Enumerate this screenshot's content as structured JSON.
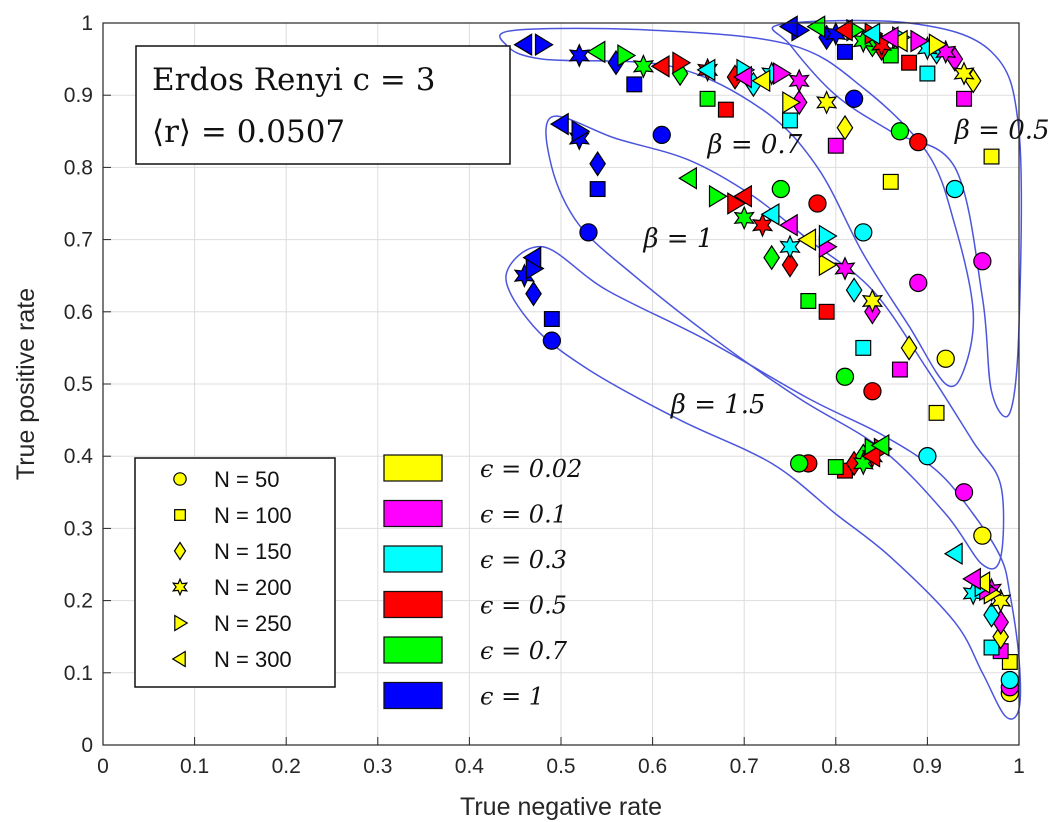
{
  "chart_data": {
    "type": "scatter",
    "xlabel": "True negative rate",
    "ylabel": "True positive rate",
    "xlim": [
      0,
      1
    ],
    "ylim": [
      0,
      1
    ],
    "xticks": [
      "0",
      "0.1",
      "0.2",
      "0.3",
      "0.4",
      "0.5",
      "0.6",
      "0.7",
      "0.8",
      "0.9",
      "1"
    ],
    "yticks": [
      "0",
      "0.1",
      "0.2",
      "0.3",
      "0.4",
      "0.5",
      "0.6",
      "0.7",
      "0.8",
      "0.9",
      "1"
    ],
    "grid": true,
    "title_box": {
      "line1": "Erdos Renyi c = 3",
      "line2": "⟨r⟩ = 0.0507"
    },
    "marker_legend": [
      {
        "label": "N = 50",
        "marker": "circle"
      },
      {
        "label": "N = 100",
        "marker": "square"
      },
      {
        "label": "N = 150",
        "marker": "diamond"
      },
      {
        "label": "N = 200",
        "marker": "hexagram"
      },
      {
        "label": "N = 250",
        "marker": "triangle-right"
      },
      {
        "label": "N = 300",
        "marker": "triangle-left"
      }
    ],
    "color_legend": [
      {
        "label": "ϵ = 0.02",
        "color": "#ffff00"
      },
      {
        "label": "ϵ = 0.1",
        "color": "#ff00ff"
      },
      {
        "label": "ϵ = 0.3",
        "color": "#00ffff"
      },
      {
        "label": "ϵ = 0.5",
        "color": "#ff0000"
      },
      {
        "label": "ϵ = 0.7",
        "color": "#00ff00"
      },
      {
        "label": "ϵ = 1",
        "color": "#0000ff"
      }
    ],
    "region_labels": [
      {
        "text": "β = 0.5",
        "x": 0.93,
        "y": 0.84
      },
      {
        "text": "β = 0.7",
        "x": 0.66,
        "y": 0.82
      },
      {
        "text": "β = 1",
        "x": 0.59,
        "y": 0.69
      },
      {
        "text": "β = 1.5",
        "x": 0.62,
        "y": 0.46
      }
    ],
    "regions": [
      {
        "name": "beta-0.5",
        "points": [
          [
            0.74,
            0.998
          ],
          [
            0.88,
            1.0
          ],
          [
            0.97,
            0.96
          ],
          [
            1.0,
            0.85
          ],
          [
            1.0,
            0.58
          ],
          [
            0.99,
            0.46
          ],
          [
            0.97,
            0.49
          ],
          [
            0.96,
            0.62
          ],
          [
            0.93,
            0.8
          ],
          [
            0.86,
            0.85
          ],
          [
            0.8,
            0.9
          ],
          [
            0.75,
            0.97
          ]
        ]
      },
      {
        "name": "beta-0.7",
        "points": [
          [
            0.45,
            0.99
          ],
          [
            0.6,
            0.99
          ],
          [
            0.75,
            0.97
          ],
          [
            0.83,
            0.91
          ],
          [
            0.9,
            0.82
          ],
          [
            0.93,
            0.72
          ],
          [
            0.95,
            0.6
          ],
          [
            0.94,
            0.52
          ],
          [
            0.92,
            0.5
          ],
          [
            0.88,
            0.58
          ],
          [
            0.83,
            0.68
          ],
          [
            0.78,
            0.8
          ],
          [
            0.72,
            0.88
          ],
          [
            0.62,
            0.94
          ],
          [
            0.48,
            0.95
          ],
          [
            0.44,
            0.97
          ]
        ]
      },
      {
        "name": "beta-1",
        "points": [
          [
            0.49,
            0.87
          ],
          [
            0.56,
            0.84
          ],
          [
            0.64,
            0.81
          ],
          [
            0.71,
            0.76
          ],
          [
            0.77,
            0.7
          ],
          [
            0.84,
            0.63
          ],
          [
            0.9,
            0.52
          ],
          [
            0.95,
            0.42
          ],
          [
            0.98,
            0.36
          ],
          [
            0.98,
            0.26
          ],
          [
            0.96,
            0.25
          ],
          [
            0.92,
            0.32
          ],
          [
            0.85,
            0.41
          ],
          [
            0.76,
            0.48
          ],
          [
            0.67,
            0.56
          ],
          [
            0.58,
            0.65
          ],
          [
            0.52,
            0.72
          ],
          [
            0.49,
            0.8
          ]
        ]
      },
      {
        "name": "beta-1.5",
        "points": [
          [
            0.44,
            0.65
          ],
          [
            0.48,
            0.69
          ],
          [
            0.55,
            0.63
          ],
          [
            0.66,
            0.56
          ],
          [
            0.77,
            0.48
          ],
          [
            0.85,
            0.43
          ],
          [
            0.91,
            0.38
          ],
          [
            0.95,
            0.32
          ],
          [
            0.98,
            0.26
          ],
          [
            0.99,
            0.21
          ],
          [
            1.0,
            0.12
          ],
          [
            1.0,
            0.05
          ],
          [
            0.985,
            0.04
          ],
          [
            0.96,
            0.1
          ],
          [
            0.93,
            0.17
          ],
          [
            0.86,
            0.26
          ],
          [
            0.8,
            0.32
          ],
          [
            0.73,
            0.39
          ],
          [
            0.63,
            0.45
          ],
          [
            0.53,
            0.52
          ],
          [
            0.47,
            0.58
          ]
        ]
      }
    ],
    "series": [
      {
        "n": "50",
        "eps": "0.02",
        "points": [
          [
            0.92,
            0.535
          ],
          [
            0.99,
            0.072
          ],
          [
            0.96,
            0.29
          ]
        ]
      },
      {
        "n": "50",
        "eps": "0.1",
        "points": [
          [
            0.96,
            0.67
          ],
          [
            0.89,
            0.64
          ],
          [
            0.94,
            0.35
          ],
          [
            0.99,
            0.08
          ]
        ]
      },
      {
        "n": "50",
        "eps": "0.3",
        "points": [
          [
            0.93,
            0.77
          ],
          [
            0.83,
            0.71
          ],
          [
            0.9,
            0.4
          ],
          [
            0.99,
            0.09
          ]
        ]
      },
      {
        "n": "50",
        "eps": "0.5",
        "points": [
          [
            0.89,
            0.835
          ],
          [
            0.78,
            0.75
          ],
          [
            0.84,
            0.49
          ],
          [
            0.77,
            0.39
          ]
        ]
      },
      {
        "n": "50",
        "eps": "0.7",
        "points": [
          [
            0.87,
            0.85
          ],
          [
            0.74,
            0.77
          ],
          [
            0.81,
            0.51
          ],
          [
            0.76,
            0.39
          ]
        ]
      },
      {
        "n": "50",
        "eps": "1",
        "points": [
          [
            0.82,
            0.895
          ],
          [
            0.61,
            0.845
          ],
          [
            0.53,
            0.71
          ],
          [
            0.49,
            0.56
          ]
        ]
      },
      {
        "n": "100",
        "eps": "0.02",
        "points": [
          [
            0.97,
            0.815
          ],
          [
            0.86,
            0.78
          ],
          [
            0.91,
            0.46
          ],
          [
            0.99,
            0.115
          ]
        ]
      },
      {
        "n": "100",
        "eps": "0.1",
        "points": [
          [
            0.94,
            0.895
          ],
          [
            0.8,
            0.83
          ],
          [
            0.87,
            0.52
          ],
          [
            0.98,
            0.13
          ]
        ]
      },
      {
        "n": "100",
        "eps": "0.3",
        "points": [
          [
            0.9,
            0.93
          ],
          [
            0.75,
            0.865
          ],
          [
            0.83,
            0.55
          ],
          [
            0.97,
            0.135
          ]
        ]
      },
      {
        "n": "100",
        "eps": "0.5",
        "points": [
          [
            0.88,
            0.945
          ],
          [
            0.68,
            0.88
          ],
          [
            0.79,
            0.6
          ],
          [
            0.81,
            0.38
          ]
        ]
      },
      {
        "n": "100",
        "eps": "0.7",
        "points": [
          [
            0.86,
            0.955
          ],
          [
            0.66,
            0.895
          ],
          [
            0.77,
            0.615
          ],
          [
            0.8,
            0.385
          ]
        ]
      },
      {
        "n": "100",
        "eps": "1",
        "points": [
          [
            0.81,
            0.96
          ],
          [
            0.58,
            0.915
          ],
          [
            0.54,
            0.77
          ],
          [
            0.49,
            0.59
          ]
        ]
      },
      {
        "n": "150",
        "eps": "0.02",
        "points": [
          [
            0.95,
            0.92
          ],
          [
            0.81,
            0.855
          ],
          [
            0.88,
            0.55
          ],
          [
            0.98,
            0.15
          ]
        ]
      },
      {
        "n": "150",
        "eps": "0.1",
        "points": [
          [
            0.93,
            0.95
          ],
          [
            0.76,
            0.89
          ],
          [
            0.84,
            0.6
          ],
          [
            0.98,
            0.17
          ]
        ]
      },
      {
        "n": "150",
        "eps": "0.3",
        "points": [
          [
            0.91,
            0.96
          ],
          [
            0.71,
            0.915
          ],
          [
            0.82,
            0.63
          ],
          [
            0.97,
            0.18
          ]
        ]
      },
      {
        "n": "150",
        "eps": "0.5",
        "points": [
          [
            0.85,
            0.965
          ],
          [
            0.69,
            0.925
          ],
          [
            0.75,
            0.665
          ],
          [
            0.82,
            0.39
          ]
        ]
      },
      {
        "n": "150",
        "eps": "0.7",
        "points": [
          [
            0.84,
            0.97
          ],
          [
            0.63,
            0.93
          ],
          [
            0.73,
            0.675
          ],
          [
            0.83,
            0.4
          ]
        ]
      },
      {
        "n": "150",
        "eps": "1",
        "points": [
          [
            0.79,
            0.98
          ],
          [
            0.56,
            0.945
          ],
          [
            0.54,
            0.805
          ],
          [
            0.47,
            0.625
          ]
        ]
      },
      {
        "n": "200",
        "eps": "0.02",
        "points": [
          [
            0.94,
            0.93
          ],
          [
            0.79,
            0.89
          ],
          [
            0.84,
            0.615
          ],
          [
            0.98,
            0.2
          ]
        ]
      },
      {
        "n": "200",
        "eps": "0.1",
        "points": [
          [
            0.92,
            0.96
          ],
          [
            0.76,
            0.92
          ],
          [
            0.81,
            0.66
          ],
          [
            0.97,
            0.215
          ]
        ]
      },
      {
        "n": "200",
        "eps": "0.3",
        "points": [
          [
            0.9,
            0.965
          ],
          [
            0.73,
            0.93
          ],
          [
            0.75,
            0.69
          ],
          [
            0.95,
            0.21
          ]
        ]
      },
      {
        "n": "200",
        "eps": "0.5",
        "points": [
          [
            0.85,
            0.97
          ],
          [
            0.66,
            0.935
          ],
          [
            0.72,
            0.72
          ],
          [
            0.84,
            0.4
          ]
        ]
      },
      {
        "n": "200",
        "eps": "0.7",
        "points": [
          [
            0.83,
            0.975
          ],
          [
            0.59,
            0.94
          ],
          [
            0.7,
            0.73
          ],
          [
            0.83,
            0.39
          ]
        ]
      },
      {
        "n": "200",
        "eps": "1",
        "points": [
          [
            0.8,
            0.985
          ],
          [
            0.52,
            0.955
          ],
          [
            0.52,
            0.84
          ],
          [
            0.46,
            0.65
          ]
        ]
      },
      {
        "n": "250",
        "eps": "0.02",
        "points": [
          [
            0.91,
            0.97
          ],
          [
            0.75,
            0.89
          ],
          [
            0.79,
            0.665
          ],
          [
            0.97,
            0.21
          ]
        ]
      },
      {
        "n": "250",
        "eps": "0.1",
        "points": [
          [
            0.89,
            0.975
          ],
          [
            0.74,
            0.93
          ],
          [
            0.79,
            0.69
          ],
          [
            0.965,
            0.215
          ]
        ]
      },
      {
        "n": "250",
        "eps": "0.3",
        "points": [
          [
            0.87,
            0.98
          ],
          [
            0.7,
            0.935
          ],
          [
            0.79,
            0.705
          ],
          [
            0.96,
            0.22
          ]
        ]
      },
      {
        "n": "250",
        "eps": "0.5",
        "points": [
          [
            0.84,
            0.985
          ],
          [
            0.63,
            0.945
          ],
          [
            0.69,
            0.75
          ],
          [
            0.85,
            0.41
          ]
        ]
      },
      {
        "n": "250",
        "eps": "0.7",
        "points": [
          [
            0.82,
            0.99
          ],
          [
            0.57,
            0.955
          ],
          [
            0.67,
            0.76
          ],
          [
            0.84,
            0.41
          ]
        ]
      },
      {
        "n": "250",
        "eps": "1",
        "points": [
          [
            0.76,
            0.99
          ],
          [
            0.48,
            0.97
          ],
          [
            0.52,
            0.85
          ],
          [
            0.47,
            0.66
          ]
        ]
      },
      {
        "n": "300",
        "eps": "0.02",
        "points": [
          [
            0.87,
            0.975
          ],
          [
            0.72,
            0.92
          ],
          [
            0.77,
            0.7
          ],
          [
            0.96,
            0.225
          ]
        ]
      },
      {
        "n": "300",
        "eps": "0.1",
        "points": [
          [
            0.86,
            0.98
          ],
          [
            0.7,
            0.925
          ],
          [
            0.75,
            0.72
          ],
          [
            0.95,
            0.23
          ]
        ]
      },
      {
        "n": "300",
        "eps": "0.3",
        "points": [
          [
            0.84,
            0.985
          ],
          [
            0.66,
            0.935
          ],
          [
            0.73,
            0.735
          ],
          [
            0.93,
            0.265
          ]
        ]
      },
      {
        "n": "300",
        "eps": "0.5",
        "points": [
          [
            0.81,
            0.99
          ],
          [
            0.61,
            0.94
          ],
          [
            0.7,
            0.76
          ],
          [
            0.84,
            0.4
          ]
        ]
      },
      {
        "n": "300",
        "eps": "0.7",
        "points": [
          [
            0.78,
            0.995
          ],
          [
            0.54,
            0.96
          ],
          [
            0.64,
            0.785
          ],
          [
            0.85,
            0.415
          ]
        ]
      },
      {
        "n": "300",
        "eps": "1",
        "points": [
          [
            0.75,
            0.995
          ],
          [
            0.46,
            0.97
          ],
          [
            0.5,
            0.86
          ],
          [
            0.47,
            0.675
          ]
        ]
      }
    ]
  }
}
